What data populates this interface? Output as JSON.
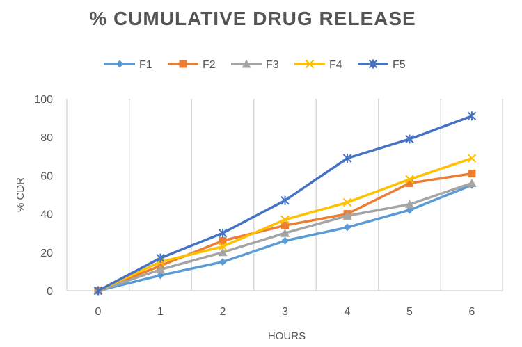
{
  "chart_data": {
    "type": "line",
    "title": "% CUMULATIVE DRUG RELEASE",
    "xlabel": "HOURS",
    "ylabel": "% CDR",
    "categories": [
      "0",
      "1",
      "2",
      "3",
      "4",
      "5",
      "6"
    ],
    "ylim": [
      0,
      100
    ],
    "yticks": [
      "0",
      "20",
      "40",
      "60",
      "80",
      "100"
    ],
    "grid": "vertical",
    "legend": "top",
    "series": [
      {
        "name": "F1",
        "color": "#5B9BD5",
        "marker": "diamond",
        "values": [
          0,
          8,
          15,
          26,
          33,
          42,
          55
        ]
      },
      {
        "name": "F2",
        "color": "#ED7D31",
        "marker": "square",
        "values": [
          0,
          13,
          26,
          34,
          40,
          56,
          61
        ]
      },
      {
        "name": "F3",
        "color": "#A5A5A5",
        "marker": "triangle",
        "values": [
          0,
          11,
          20,
          30,
          39,
          45,
          56
        ]
      },
      {
        "name": "F4",
        "color": "#FFC000",
        "marker": "x",
        "values": [
          0,
          15,
          23,
          37,
          46,
          58,
          69
        ]
      },
      {
        "name": "F5",
        "color": "#4472C4",
        "marker": "star",
        "values": [
          0,
          17,
          30,
          47,
          69,
          79,
          91
        ]
      }
    ]
  }
}
